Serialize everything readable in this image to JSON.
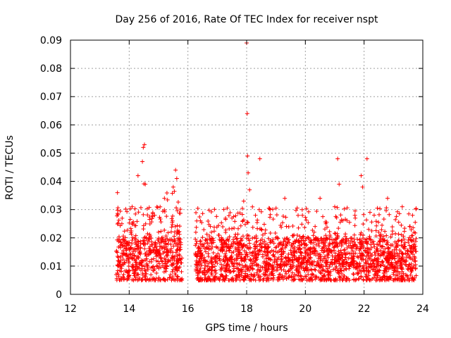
{
  "chart_data": {
    "type": "scatter",
    "title": "Day 256 of 2016, Rate Of TEC Index for receiver nspt",
    "xlabel": "GPS time / hours",
    "ylabel": "ROTI / TECUs",
    "xlim": [
      12,
      24
    ],
    "ylim": [
      0,
      0.09
    ],
    "x_ticks": [
      "12",
      "14",
      "16",
      "18",
      "20",
      "22",
      "24"
    ],
    "y_ticks": [
      "0",
      "0.01",
      "0.02",
      "0.03",
      "0.04",
      "0.05",
      "0.06",
      "0.07",
      "0.08",
      "0.09"
    ],
    "grid": true,
    "marker": "+",
    "color": "#ff0000",
    "series": [
      {
        "name": "ROTI",
        "x": [
          13.6,
          13.65,
          13.75,
          13.9,
          14.1,
          14.3,
          14.45,
          14.48,
          14.52,
          14.55,
          14.6,
          14.8,
          15.0,
          15.2,
          15.35,
          15.5,
          15.58,
          15.62,
          15.7,
          15.78,
          16.3,
          16.5,
          16.8,
          17.0,
          17.3,
          17.5,
          17.7,
          17.9,
          18.0,
          18.02,
          18.03,
          18.05,
          18.1,
          18.3,
          18.45,
          18.55,
          18.8,
          19.0,
          19.3,
          19.6,
          19.9,
          20.1,
          20.3,
          20.5,
          20.7,
          21.0,
          21.1,
          21.15,
          21.4,
          21.7,
          21.9,
          21.95,
          22.1,
          22.2,
          22.5,
          22.8,
          23.1,
          23.3,
          23.55,
          23.65,
          23.75
        ],
        "y": [
          0.036,
          0.012,
          0.025,
          0.018,
          0.031,
          0.042,
          0.047,
          0.052,
          0.053,
          0.039,
          0.015,
          0.028,
          0.022,
          0.034,
          0.019,
          0.038,
          0.044,
          0.041,
          0.012,
          0.008,
          0.026,
          0.014,
          0.022,
          0.011,
          0.019,
          0.027,
          0.016,
          0.033,
          0.089,
          0.064,
          0.049,
          0.043,
          0.037,
          0.028,
          0.048,
          0.021,
          0.03,
          0.015,
          0.034,
          0.018,
          0.028,
          0.012,
          0.022,
          0.034,
          0.025,
          0.031,
          0.048,
          0.039,
          0.019,
          0.027,
          0.042,
          0.038,
          0.048,
          0.029,
          0.022,
          0.034,
          0.018,
          0.031,
          0.024,
          0.028,
          0.009
        ]
      }
    ]
  }
}
